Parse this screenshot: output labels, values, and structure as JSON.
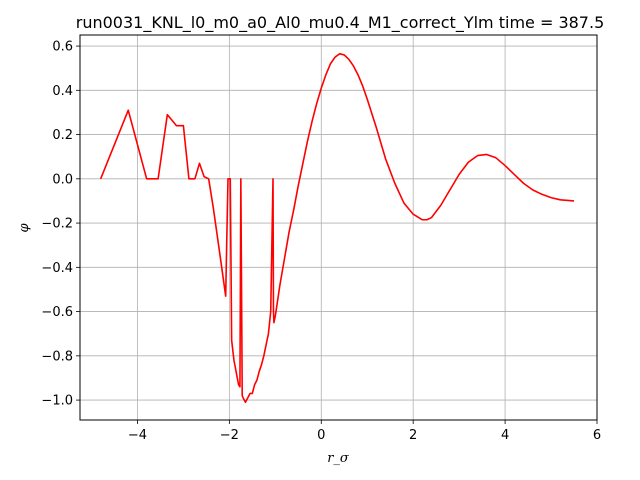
{
  "chart_data": {
    "type": "line",
    "title": "run0031_KNL_l0_m0_a0_Al0_mu0.4_M1_correct_Ylm time = 387.5",
    "xlabel": "r_σ",
    "ylabel": "φ",
    "xlim": [
      -5.25,
      6.0
    ],
    "ylim": [
      -1.09,
      0.65
    ],
    "xticks": [
      -4,
      -2,
      0,
      2,
      4,
      6
    ],
    "yticks": [
      -1.0,
      -0.8,
      -0.6,
      -0.4,
      -0.2,
      0.0,
      0.2,
      0.4,
      0.6
    ],
    "xtick_labels": [
      "−4",
      "−2",
      "0",
      "2",
      "4",
      "6"
    ],
    "ytick_labels": [
      "−1.0",
      "−0.8",
      "−0.6",
      "−0.4",
      "−0.2",
      "0.0",
      "0.2",
      "0.4",
      "0.6"
    ],
    "grid": true,
    "series": [
      {
        "color": "#ff0000",
        "x": [
          -4.8,
          -4.2,
          -3.8,
          -3.55,
          -3.35,
          -3.15,
          -3.0,
          -2.88,
          -2.75,
          -2.65,
          -2.55,
          -2.45,
          -2.35,
          -2.2,
          -2.08,
          -2.03,
          -1.98,
          -1.95,
          -1.9,
          -1.8,
          -1.77,
          -1.75,
          -1.72,
          -1.7,
          -1.65,
          -1.6,
          -1.55,
          -1.5,
          -1.45,
          -1.4,
          -1.35,
          -1.3,
          -1.25,
          -1.2,
          -1.15,
          -1.1,
          -1.05,
          -1.04,
          -1.03,
          -1.0,
          -0.95,
          -0.9,
          -0.8,
          -0.7,
          -0.6,
          -0.5,
          -0.4,
          -0.3,
          -0.2,
          -0.1,
          0.0,
          0.1,
          0.2,
          0.3,
          0.4,
          0.5,
          0.6,
          0.7,
          0.8,
          0.9,
          1.0,
          1.2,
          1.4,
          1.6,
          1.8,
          2.0,
          2.2,
          2.3,
          2.4,
          2.6,
          2.8,
          3.0,
          3.2,
          3.4,
          3.6,
          3.8,
          4.0,
          4.2,
          4.4,
          4.6,
          4.8,
          5.0,
          5.2,
          5.5
        ],
        "y": [
          0.0,
          0.31,
          0.0,
          0.0,
          0.29,
          0.24,
          0.24,
          0.0,
          0.0,
          0.07,
          0.01,
          0.0,
          -0.13,
          -0.35,
          -0.53,
          0.0,
          0.0,
          -0.73,
          -0.82,
          -0.93,
          -0.94,
          0.0,
          -0.98,
          -0.99,
          -1.01,
          -0.99,
          -0.97,
          -0.97,
          -0.93,
          -0.91,
          -0.87,
          -0.84,
          -0.8,
          -0.75,
          -0.7,
          -0.6,
          0.0,
          -0.6,
          -0.65,
          -0.62,
          -0.55,
          -0.48,
          -0.36,
          -0.24,
          -0.14,
          -0.03,
          0.07,
          0.17,
          0.26,
          0.34,
          0.41,
          0.47,
          0.52,
          0.55,
          0.565,
          0.56,
          0.54,
          0.51,
          0.47,
          0.42,
          0.36,
          0.23,
          0.09,
          -0.02,
          -0.11,
          -0.16,
          -0.185,
          -0.185,
          -0.175,
          -0.12,
          -0.05,
          0.02,
          0.075,
          0.105,
          0.11,
          0.095,
          0.06,
          0.02,
          -0.02,
          -0.05,
          -0.07,
          -0.085,
          -0.095,
          -0.1
        ]
      }
    ]
  }
}
